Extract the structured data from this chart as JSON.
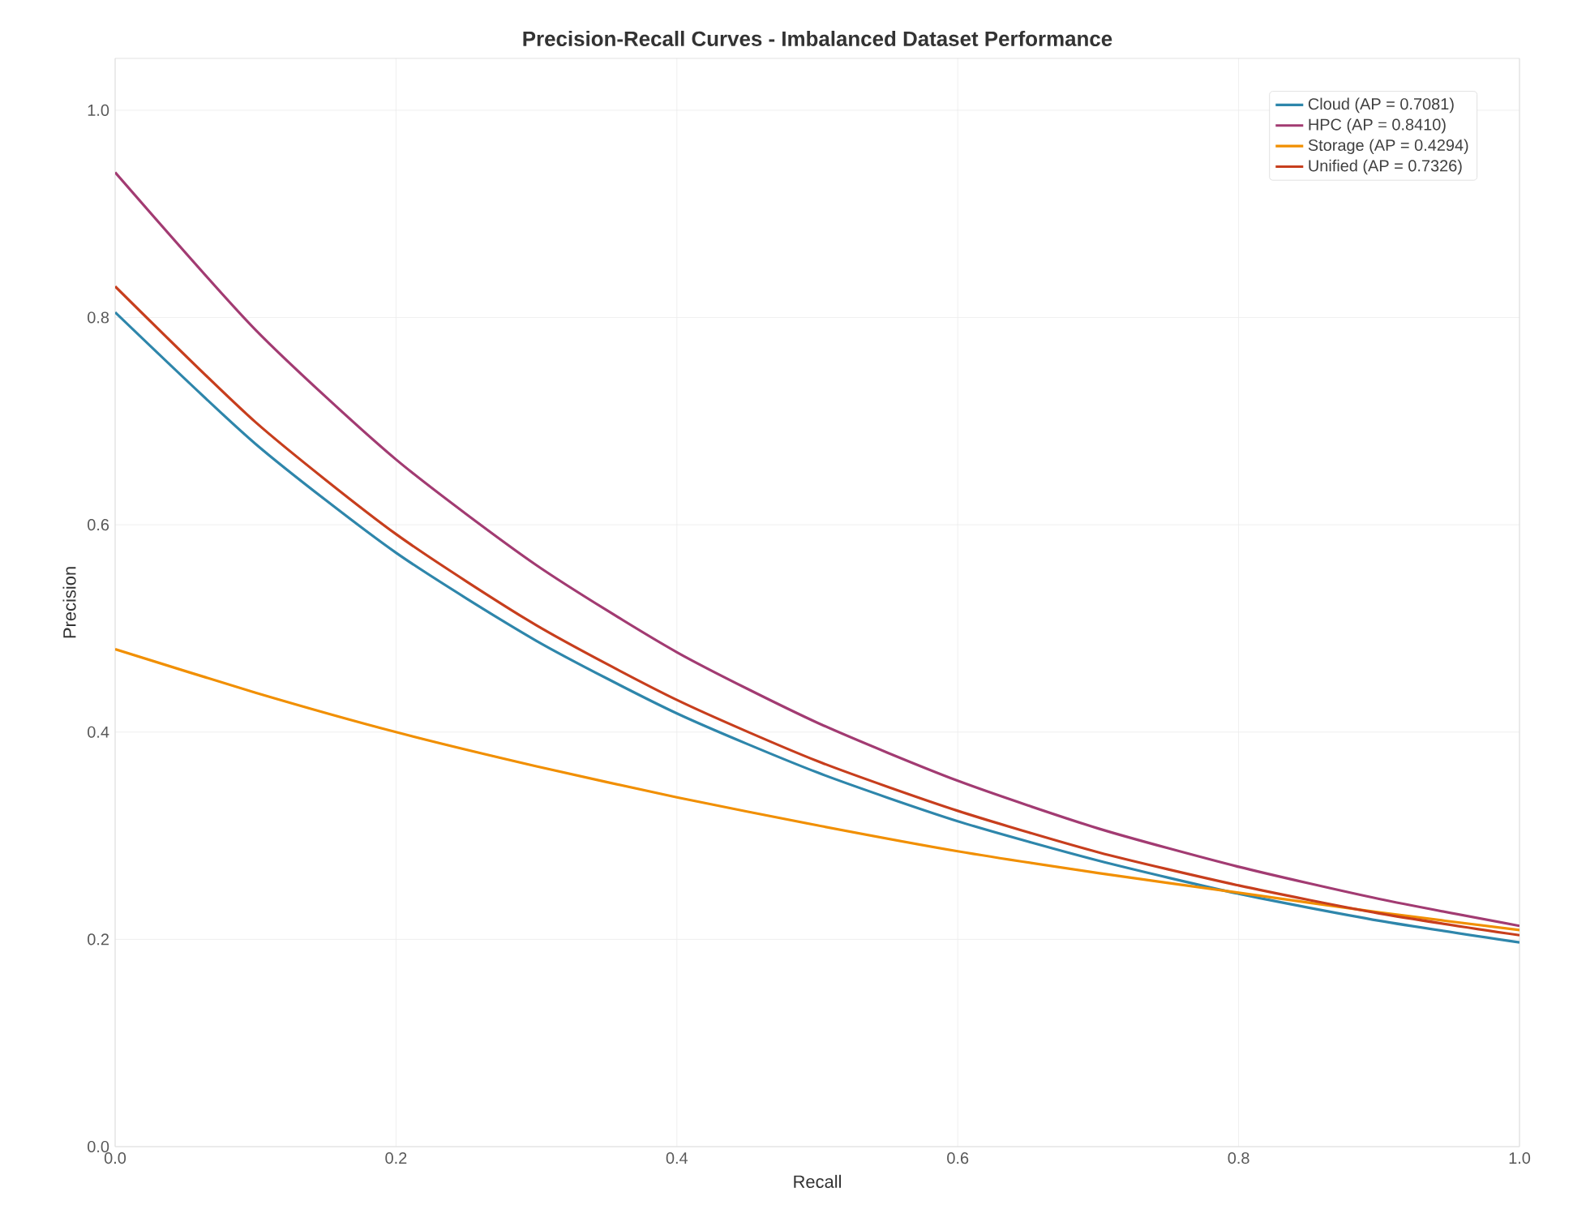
{
  "chart_data": {
    "type": "line",
    "title": "Precision-Recall Curves - Imbalanced Dataset Performance",
    "xlabel": "Recall",
    "ylabel": "Precision",
    "x": [
      0,
      0.1,
      0.2,
      0.3,
      0.4,
      0.5,
      0.6,
      0.7,
      0.8,
      0.9,
      1.0
    ],
    "series": [
      {
        "name": "Cloud (AP = 0.7081)",
        "color": "#2e86ab",
        "values": [
          0.805,
          0.678,
          0.573,
          0.488,
          0.418,
          0.361,
          0.314,
          0.276,
          0.244,
          0.218,
          0.197
        ]
      },
      {
        "name": "HPC (AP = 0.8410)",
        "color": "#a23b72",
        "values": [
          0.94,
          0.788,
          0.663,
          0.561,
          0.477,
          0.409,
          0.353,
          0.307,
          0.27,
          0.239,
          0.213
        ]
      },
      {
        "name": "Storage (AP = 0.4294)",
        "color": "#f18f01",
        "values": [
          0.48,
          0.438,
          0.4,
          0.367,
          0.337,
          0.31,
          0.285,
          0.264,
          0.245,
          0.226,
          0.209
        ]
      },
      {
        "name": "Unified (AP = 0.7326)",
        "color": "#c73e1d",
        "values": [
          0.83,
          0.699,
          0.591,
          0.503,
          0.431,
          0.372,
          0.324,
          0.284,
          0.252,
          0.225,
          0.204
        ]
      }
    ],
    "xlim": [
      0,
      1.0
    ],
    "ylim": [
      0,
      1.05
    ],
    "xticks": [
      {
        "value": 0,
        "label": "0.0"
      },
      0.2,
      0.4,
      0.6,
      0.8,
      {
        "value": 1.0,
        "label": "1.0"
      }
    ],
    "yticks": [
      {
        "value": 0,
        "label": "0.0"
      },
      0.2,
      0.4,
      0.6,
      0.8,
      {
        "value": 1.0,
        "label": "1.0"
      }
    ],
    "grid": true,
    "legend": "top right"
  }
}
